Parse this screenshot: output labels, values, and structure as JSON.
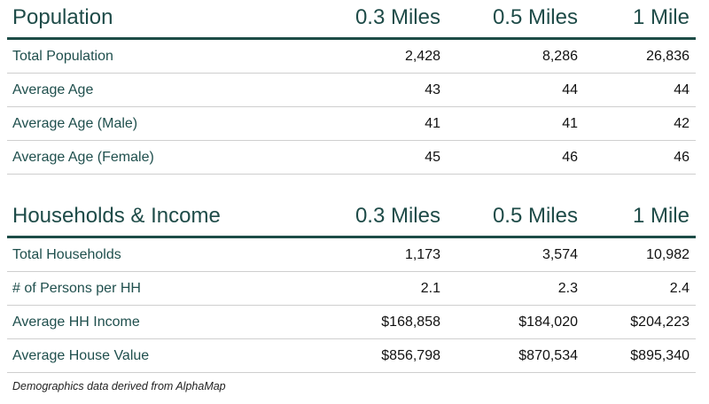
{
  "sections": [
    {
      "title": "Population",
      "columns": [
        "0.3 Miles",
        "0.5 Miles",
        "1 Mile"
      ],
      "rows": [
        {
          "label": "Total Population",
          "values": [
            "2,428",
            "8,286",
            "26,836"
          ]
        },
        {
          "label": "Average Age",
          "values": [
            "43",
            "44",
            "44"
          ]
        },
        {
          "label": "Average Age (Male)",
          "values": [
            "41",
            "41",
            "42"
          ]
        },
        {
          "label": "Average Age (Female)",
          "values": [
            "45",
            "46",
            "46"
          ]
        }
      ]
    },
    {
      "title": "Households & Income",
      "columns": [
        "0.3 Miles",
        "0.5 Miles",
        "1 Mile"
      ],
      "rows": [
        {
          "label": "Total Households",
          "values": [
            "1,173",
            "3,574",
            "10,982"
          ]
        },
        {
          "label": "# of Persons per HH",
          "values": [
            "2.1",
            "2.3",
            "2.4"
          ]
        },
        {
          "label": "Average HH Income",
          "values": [
            "$168,858",
            "$184,020",
            "$204,223"
          ]
        },
        {
          "label": "Average House Value",
          "values": [
            "$856,798",
            "$870,534",
            "$895,340"
          ]
        }
      ]
    }
  ],
  "footnote": "Demographics data derived from AlphaMap",
  "colors": {
    "header_text": "#1e4b48",
    "rule": "#1d4c47",
    "label_text": "#1f4f4d"
  }
}
